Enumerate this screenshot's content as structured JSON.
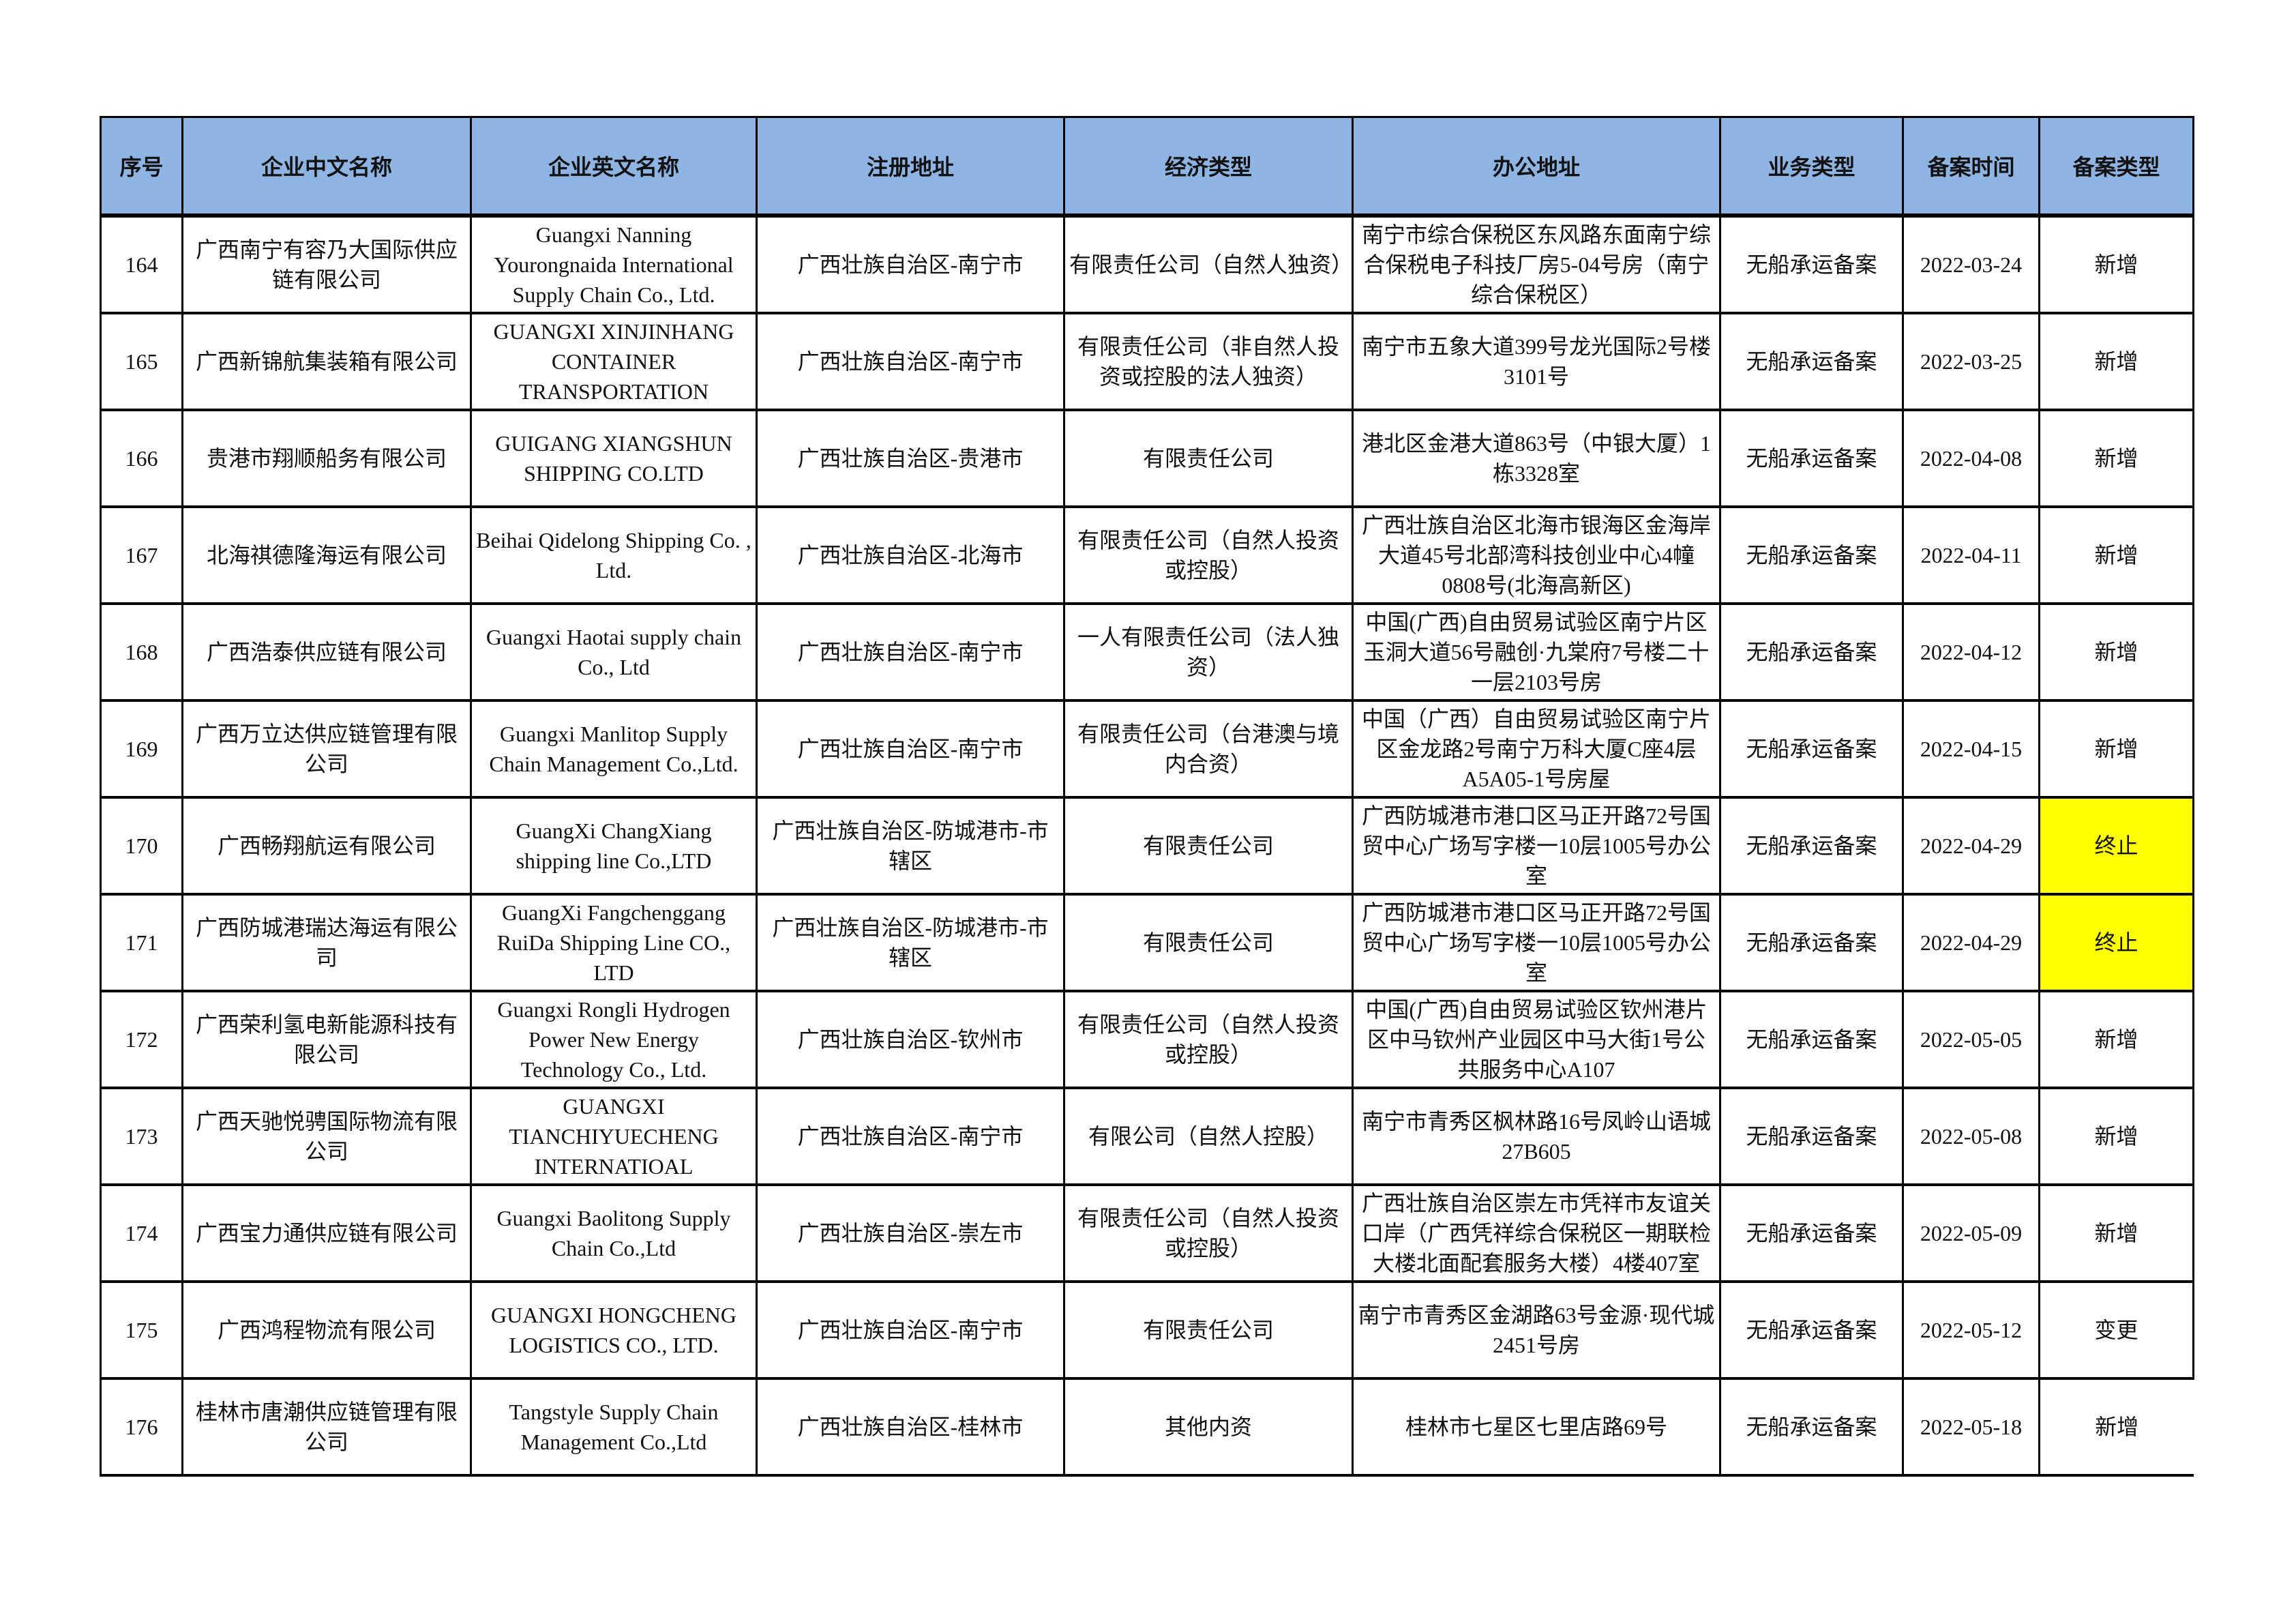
{
  "table": {
    "headers": [
      "序号",
      "企业中文名称",
      "企业英文名称",
      "注册地址",
      "经济类型",
      "办公地址",
      "业务类型",
      "备案时间",
      "备案类型"
    ],
    "highlight_color": "#ffff00",
    "header_color": "#8eb4e3",
    "rows": [
      [
        "164",
        "广西南宁有容乃大国际供应链有限公司",
        "Guangxi Nanning Yourongnaida International Supply Chain Co., Ltd.",
        "广西壮族自治区-南宁市",
        "有限责任公司（自然人独资）",
        "南宁市综合保税区东风路东面南宁综合保税电子科技厂房5-04号房（南宁综合保税区）",
        "无船承运备案",
        "2022-03-24",
        "新增"
      ],
      [
        "165",
        "广西新锦航集装箱有限公司",
        "GUANGXI XINJINHANG CONTAINER TRANSPORTATION",
        "广西壮族自治区-南宁市",
        "有限责任公司（非自然人投资或控股的法人独资）",
        "南宁市五象大道399号龙光国际2号楼3101号",
        "无船承运备案",
        "2022-03-25",
        "新增"
      ],
      [
        "166",
        "贵港市翔顺船务有限公司",
        "GUIGANG XIANGSHUN SHIPPING CO.LTD",
        "广西壮族自治区-贵港市",
        "有限责任公司",
        "港北区金港大道863号（中银大厦）1栋3328室",
        "无船承运备案",
        "2022-04-08",
        "新增"
      ],
      [
        "167",
        "北海祺德隆海运有限公司",
        "Beihai Qidelong Shipping Co. , Ltd.",
        "广西壮族自治区-北海市",
        "有限责任公司（自然人投资或控股）",
        "广西壮族自治区北海市银海区金海岸大道45号北部湾科技创业中心4幢0808号(北海高新区)",
        "无船承运备案",
        "2022-04-11",
        "新增"
      ],
      [
        "168",
        "广西浩泰供应链有限公司",
        "Guangxi Haotai supply chain Co., Ltd",
        "广西壮族自治区-南宁市",
        "一人有限责任公司（法人独资）",
        "中国(广西)自由贸易试验区南宁片区玉洞大道56号融创·九棠府7号楼二十一层2103号房",
        "无船承运备案",
        "2022-04-12",
        "新增"
      ],
      [
        "169",
        "广西万立达供应链管理有限公司",
        "Guangxi Manlitop Supply Chain Management Co.,Ltd.",
        "广西壮族自治区-南宁市",
        "有限责任公司（台港澳与境内合资）",
        "中国（广西）自由贸易试验区南宁片区金龙路2号南宁万科大厦C座4层A5A05-1号房屋",
        "无船承运备案",
        "2022-04-15",
        "新增"
      ],
      [
        "170",
        "广西畅翔航运有限公司",
        "GuangXi ChangXiang shipping line Co.,LTD",
        "广西壮族自治区-防城港市-市辖区",
        "有限责任公司",
        "广西防城港市港口区马正开路72号国贸中心广场写字楼一10层1005号办公室",
        "无船承运备案",
        "2022-04-29",
        "终止"
      ],
      [
        "171",
        "广西防城港瑞达海运有限公司",
        "GuangXi Fangchenggang RuiDa Shipping Line CO., LTD",
        "广西壮族自治区-防城港市-市辖区",
        "有限责任公司",
        "广西防城港市港口区马正开路72号国贸中心广场写字楼一10层1005号办公室",
        "无船承运备案",
        "2022-04-29",
        "终止"
      ],
      [
        "172",
        "广西荣利氢电新能源科技有限公司",
        "Guangxi Rongli Hydrogen Power New Energy Technology Co., Ltd.",
        "广西壮族自治区-钦州市",
        "有限责任公司（自然人投资或控股）",
        "中国(广西)自由贸易试验区钦州港片区中马钦州产业园区中马大街1号公共服务中心A107",
        "无船承运备案",
        "2022-05-05",
        "新增"
      ],
      [
        "173",
        "广西天驰悦骋国际物流有限公司",
        "GUANGXI TIANCHIYUECHENG INTERNATIOAL",
        "广西壮族自治区-南宁市",
        "有限公司（自然人控股）",
        "南宁市青秀区枫林路16号凤岭山语城27B605",
        "无船承运备案",
        "2022-05-08",
        "新增"
      ],
      [
        "174",
        "广西宝力通供应链有限公司",
        "Guangxi Baolitong Supply Chain  Co.,Ltd",
        "广西壮族自治区-崇左市",
        "有限责任公司（自然人投资或控股）",
        "广西壮族自治区崇左市凭祥市友谊关口岸（广西凭祥综合保税区一期联检大楼北面配套服务大楼）4楼407室",
        "无船承运备案",
        "2022-05-09",
        "新增"
      ],
      [
        "175",
        "广西鸿程物流有限公司",
        "GUANGXI HONGCHENG LOGISTICS CO., LTD.",
        "广西壮族自治区-南宁市",
        "有限责任公司",
        "南宁市青秀区金湖路63号金源·现代城2451号房",
        "无船承运备案",
        "2022-05-12",
        "变更"
      ],
      [
        "176",
        "桂林市唐潮供应链管理有限公司",
        "Tangstyle Supply Chain Management Co.,Ltd",
        "广西壮族自治区-桂林市",
        "其他内资",
        "桂林市七星区七里店路69号",
        "无船承运备案",
        "2022-05-18",
        "新增"
      ]
    ]
  }
}
